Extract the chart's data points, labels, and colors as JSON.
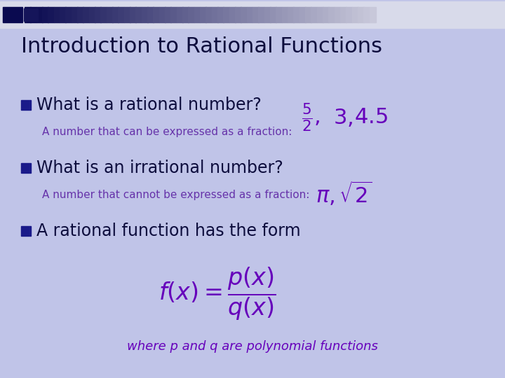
{
  "title": "Introduction to Rational Functions",
  "title_color": "#0d0d3d",
  "title_fontsize": 22,
  "bg_color": "#c0c4e8",
  "bullet_color": "#0d0d3d",
  "bullet_square_color": "#1a1a8a",
  "purple_color": "#6600bb",
  "sub_color": "#6633aa",
  "bullet1_main": "What is a rational number?",
  "bullet1_sub": "A number that can be expressed as a fraction:",
  "bullet2_main": "What is an irrational number?",
  "bullet2_sub": "A number that cannot be expressed as a fraction:",
  "bullet3_main": "A rational function has the form",
  "where_text": "where p and q are polynomial functions",
  "main_fontsize": 17,
  "sub_fontsize": 11,
  "formula_fontsize": 16,
  "where_fontsize": 13,
  "header_dark": "#0a0a50",
  "header_light": "#c8cce0",
  "header_sq_dark": "#000044",
  "header_sq_light": "#9090b0"
}
